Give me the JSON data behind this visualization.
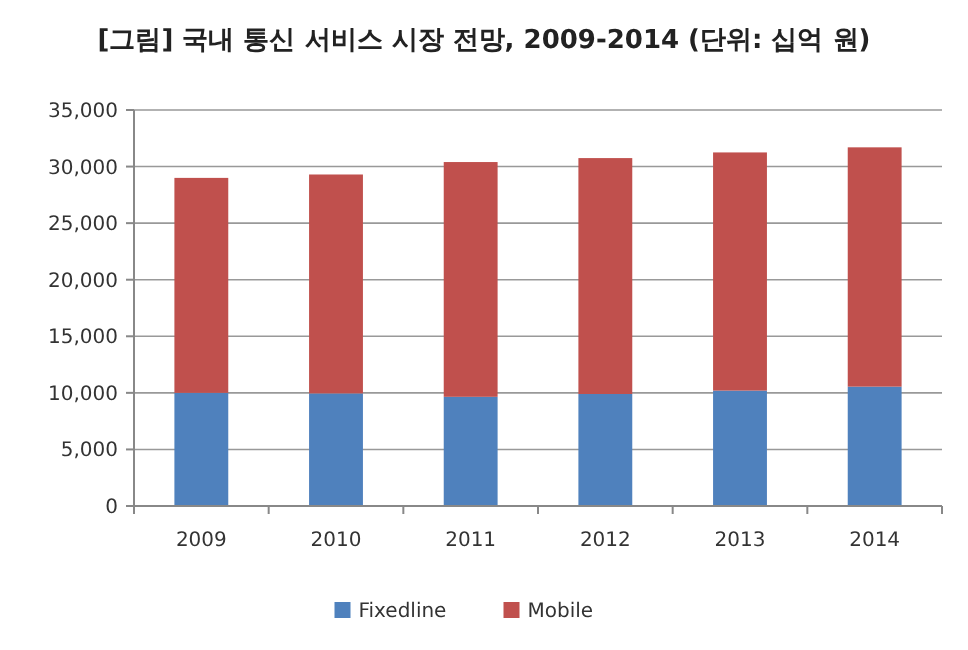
{
  "chart_data": {
    "type": "bar",
    "title": "[그림] 국내 통신 서비스 시장 전망, 2009-2014 (단위: 십억 원)",
    "categories": [
      "2009",
      "2010",
      "2011",
      "2012",
      "2013",
      "2014"
    ],
    "stacked": true,
    "series": [
      {
        "name": "Fixedline",
        "color": "#4f81bd",
        "values": [
          10000,
          9950,
          9650,
          9900,
          10200,
          10550
        ]
      },
      {
        "name": "Mobile",
        "color": "#c0504d",
        "values": [
          19000,
          19350,
          20750,
          20850,
          21050,
          21150
        ]
      }
    ],
    "ylim": [
      0,
      35000
    ],
    "yticks": [
      {
        "value": 0,
        "label": "0"
      },
      {
        "value": 5000,
        "label": "5,000"
      },
      {
        "value": 10000,
        "label": "10,000"
      },
      {
        "value": 15000,
        "label": "15,000"
      },
      {
        "value": 20000,
        "label": "20,000"
      },
      {
        "value": 25000,
        "label": "25,000"
      },
      {
        "value": 30000,
        "label": "30,000"
      },
      {
        "value": 35000,
        "label": "35,000"
      }
    ],
    "grid": "y",
    "legend": "bottom"
  }
}
